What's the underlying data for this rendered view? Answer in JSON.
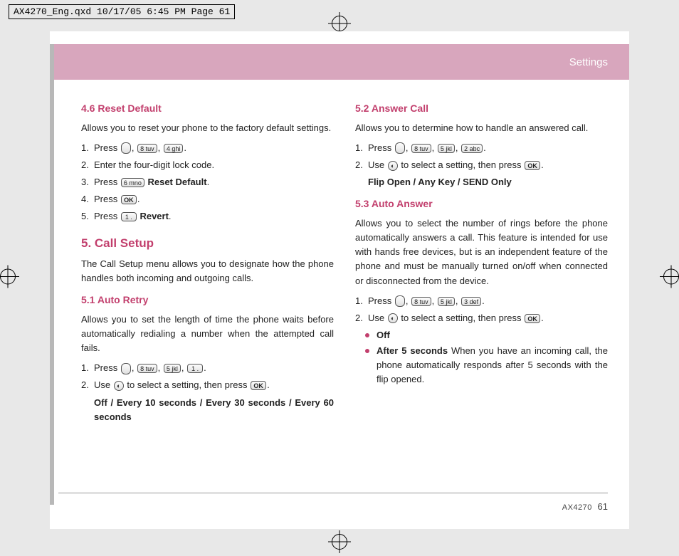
{
  "qxd_header": "AX4270_Eng.qxd  10/17/05  6:45 PM  Page 61",
  "banner": {
    "title": "Settings",
    "bg": "#d8a6bd"
  },
  "accent_color": "#c23f6d",
  "footer": {
    "model": "AX4270",
    "page": "61"
  },
  "left": {
    "s46": {
      "title": "4.6 Reset Default",
      "desc": "Allows you to reset your phone to the factory default settings.",
      "steps": [
        {
          "n": "1.",
          "pre": "Press ",
          "keys": [
            "menu",
            "8 tuv",
            "4 ghi"
          ],
          "post": "."
        },
        {
          "n": "2.",
          "text": "Enter the four-digit lock code."
        },
        {
          "n": "3.",
          "pre": "Press ",
          "keys": [
            "6 mno"
          ],
          "post_bold": " Reset Default",
          "post": "."
        },
        {
          "n": "4.",
          "pre": "Press ",
          "keys_ok": true,
          "post": "."
        },
        {
          "n": "5.",
          "pre": "Press ",
          "keys": [
            "1 ."
          ],
          "post_bold": " Revert",
          "post": "."
        }
      ]
    },
    "s5": {
      "title": "5. Call Setup",
      "desc": "The Call Setup menu allows you to designate how the phone handles both incoming and outgoing calls."
    },
    "s51": {
      "title": "5.1 Auto Retry",
      "desc": "Allows you to set the length of time the phone waits before automatically redialing a number when the attempted call fails.",
      "steps": [
        {
          "n": "1.",
          "pre": "Press ",
          "keys": [
            "menu",
            "8 tuv",
            "5 jkl",
            "1 ."
          ],
          "post": "."
        },
        {
          "n": "2.",
          "pre": "Use ",
          "keys_nav": true,
          "mid": " to select a setting, then press ",
          "keys_ok": true,
          "post": "."
        }
      ],
      "options": "Off / Every 10 seconds / Every 30 seconds / Every 60 seconds"
    }
  },
  "right": {
    "s52": {
      "title": "5.2 Answer Call",
      "desc": "Allows you to determine how to handle an answered call.",
      "steps": [
        {
          "n": "1.",
          "pre": "Press ",
          "keys": [
            "menu",
            "8 tuv",
            "5 jkl",
            "2 abc"
          ],
          "post": "."
        },
        {
          "n": "2.",
          "pre": "Use ",
          "keys_nav": true,
          "mid": " to select a setting, then press ",
          "keys_ok": true,
          "post": "."
        }
      ],
      "options": "Flip Open / Any Key / SEND Only"
    },
    "s53": {
      "title": "5.3 Auto Answer",
      "desc": "Allows you to select the number of rings before the phone automatically answers a call. This feature is intended for use with hands free devices, but is an independent feature of the phone and must be manually turned on/off when connected or disconnected from the device.",
      "steps": [
        {
          "n": "1.",
          "pre": "Press ",
          "keys": [
            "menu",
            "8 tuv",
            "5 jkl",
            "3 def"
          ],
          "post": "."
        },
        {
          "n": "2.",
          "pre": "Use ",
          "keys_nav": true,
          "mid": " to select a setting, then press ",
          "keys_ok": true,
          "post": "."
        }
      ],
      "bullets": [
        {
          "bold": "Off"
        },
        {
          "bold": "After 5 seconds",
          "rest": " When you have an incoming call, the phone automatically responds after 5 seconds with the flip opened."
        }
      ]
    }
  }
}
